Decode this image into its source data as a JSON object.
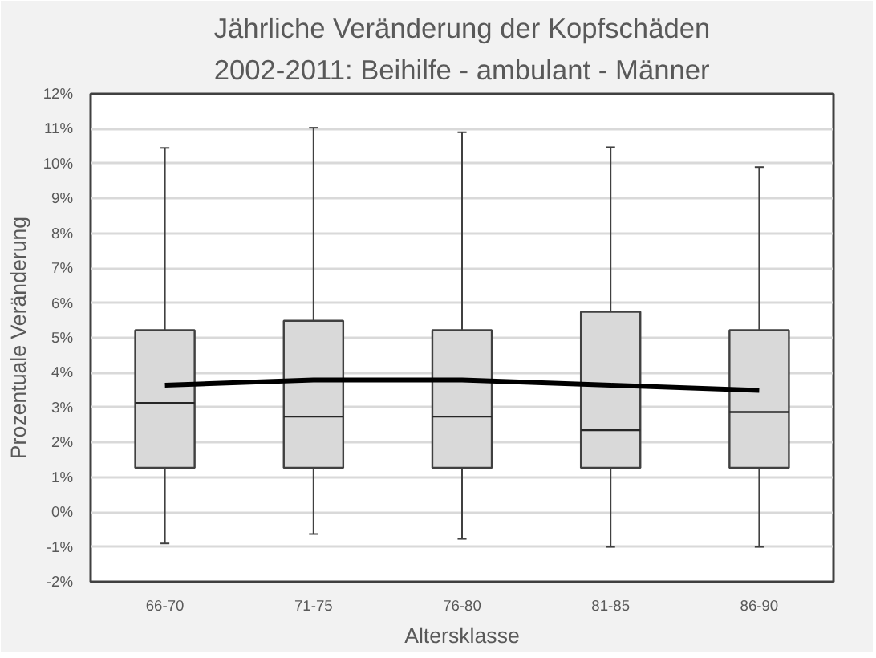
{
  "chart_data": {
    "type": "box",
    "title": "Jährliche Veränderung der Kopfschäden\n2002-2011: Beihilfe - ambulant - Männer",
    "xlabel": "Altersklasse",
    "ylabel": "Prozentuale Veränderung",
    "categories": [
      "66-70",
      "71-75",
      "76-80",
      "81-85",
      "86-90"
    ],
    "boxes": [
      {
        "low": -0.9,
        "q1": 1.27,
        "median": 3.13,
        "q3": 5.22,
        "high": 10.45
      },
      {
        "low": -0.63,
        "q1": 1.27,
        "median": 2.74,
        "q3": 5.49,
        "high": 11.03
      },
      {
        "low": -0.77,
        "q1": 1.27,
        "median": 2.74,
        "q3": 5.22,
        "high": 10.9
      },
      {
        "low": -1.0,
        "q1": 1.27,
        "median": 2.35,
        "q3": 5.75,
        "high": 10.47
      },
      {
        "low": -1.0,
        "q1": 1.27,
        "median": 2.87,
        "q3": 5.22,
        "high": 9.9
      }
    ],
    "color": "#d9d9d9",
    "series": [
      {
        "type": "line",
        "color": "#000000",
        "values": [
          3.64,
          3.79,
          3.79,
          3.64,
          3.49
        ]
      }
    ],
    "ylim": [
      -2,
      12
    ],
    "yticks": [
      {
        "value": -2,
        "label": "-2%"
      },
      {
        "value": -1,
        "label": "-1%"
      },
      {
        "value": 0,
        "label": "0%"
      },
      {
        "value": 1,
        "label": "1%"
      },
      {
        "value": 2,
        "label": "2%"
      },
      {
        "value": 3,
        "label": "3%"
      },
      {
        "value": 4,
        "label": "4%"
      },
      {
        "value": 5,
        "label": "5%"
      },
      {
        "value": 6,
        "label": "6%"
      },
      {
        "value": 7,
        "label": "7%"
      },
      {
        "value": 8,
        "label": "8%"
      },
      {
        "value": 9,
        "label": "9%"
      },
      {
        "value": 10,
        "label": "10%"
      },
      {
        "value": 11,
        "label": "11%"
      },
      {
        "value": 12,
        "label": "12%"
      }
    ],
    "grid": "y"
  }
}
